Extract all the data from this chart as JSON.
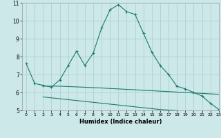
{
  "line1_x": [
    0,
    1,
    2,
    3,
    4,
    5,
    6,
    7,
    8,
    9,
    10,
    11,
    12,
    13,
    14,
    15,
    16,
    17,
    18,
    19,
    20,
    21,
    22,
    23
  ],
  "line1_y": [
    7.6,
    6.5,
    6.4,
    6.3,
    6.7,
    7.5,
    8.3,
    7.5,
    8.2,
    9.6,
    10.6,
    10.9,
    10.5,
    10.35,
    9.3,
    8.25,
    7.5,
    7.0,
    6.35,
    6.2,
    6.0,
    5.8,
    5.4,
    5.05
  ],
  "line2_x": [
    2,
    3,
    4,
    5,
    6,
    7,
    8,
    9,
    10,
    11,
    12,
    13,
    14,
    15,
    16,
    17,
    18,
    19,
    20,
    21,
    22,
    23
  ],
  "line2_y": [
    6.35,
    6.35,
    6.35,
    6.33,
    6.31,
    6.29,
    6.27,
    6.25,
    6.22,
    6.2,
    6.17,
    6.15,
    6.12,
    6.1,
    6.07,
    6.05,
    6.02,
    6.0,
    5.97,
    5.95,
    5.92,
    5.9
  ],
  "line3_x": [
    2,
    3,
    4,
    5,
    6,
    7,
    8,
    9,
    10,
    11,
    12,
    13,
    14,
    15,
    16,
    17,
    18,
    19,
    20,
    21,
    22,
    23
  ],
  "line3_y": [
    5.75,
    5.7,
    5.65,
    5.6,
    5.55,
    5.5,
    5.45,
    5.4,
    5.35,
    5.3,
    5.25,
    5.2,
    5.15,
    5.1,
    5.05,
    5.02,
    4.99,
    4.96,
    4.93,
    4.9,
    4.87,
    5.0
  ],
  "color": "#1a7a6e",
  "bg_color": "#cce8e8",
  "grid_color": "#aacccc",
  "xlim": [
    -0.5,
    23
  ],
  "ylim": [
    5,
    11
  ],
  "yticks": [
    5,
    6,
    7,
    8,
    9,
    10,
    11
  ],
  "xticks": [
    0,
    1,
    2,
    3,
    4,
    5,
    6,
    7,
    8,
    9,
    10,
    11,
    12,
    13,
    14,
    15,
    16,
    17,
    18,
    19,
    20,
    21,
    22,
    23
  ],
  "xlabel": "Humidex (Indice chaleur)"
}
